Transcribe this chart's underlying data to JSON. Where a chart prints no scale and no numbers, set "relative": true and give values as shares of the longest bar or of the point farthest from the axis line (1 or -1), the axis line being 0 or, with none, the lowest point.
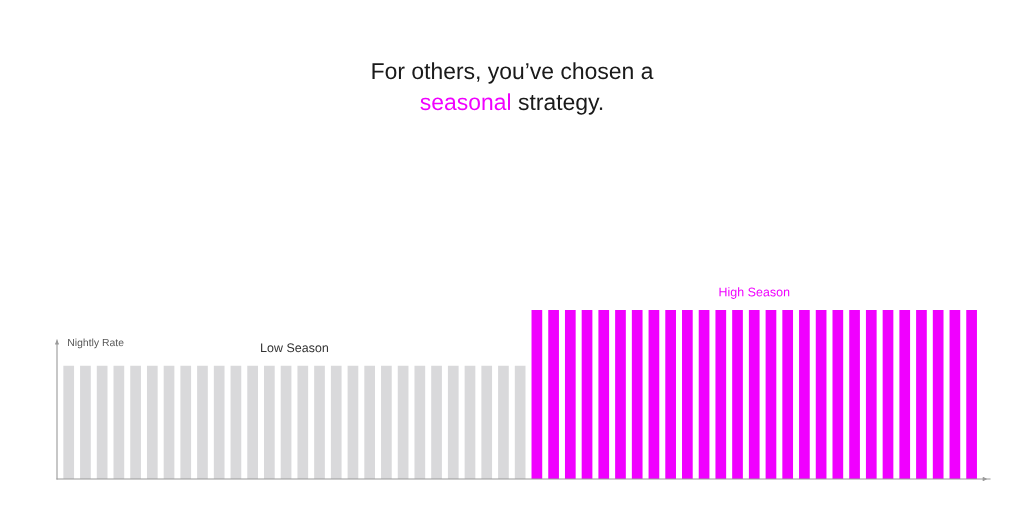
{
  "chart_data": {
    "type": "bar",
    "title": "For others, you’ve chosen a\nseasonal strategy.",
    "ylabel": "Nightly Rate",
    "relative": true,
    "stacked": true,
    "categories": [
      null,
      null,
      null,
      null,
      null,
      null,
      null,
      null,
      null,
      null,
      null,
      null,
      null,
      null,
      null,
      null,
      null,
      null,
      null,
      null,
      null,
      null,
      null,
      null,
      null,
      null,
      null,
      null,
      null,
      null,
      null,
      null,
      null,
      null,
      null,
      null,
      null,
      null,
      null,
      null,
      null,
      null,
      null,
      null,
      null,
      null,
      null,
      null,
      null,
      null,
      null,
      null,
      null,
      null,
      null
    ],
    "series": [
      {
        "name": "Low Season",
        "color": "#d9d9db",
        "values": [
          0.67,
          0.67,
          0.67,
          0.67,
          0.67,
          0.67,
          0.67,
          0.67,
          0.67,
          0.67,
          0.67,
          0.67,
          0.67,
          0.67,
          0.67,
          0.67,
          0.67,
          0.67,
          0.67,
          0.67,
          0.67,
          0.67,
          0.67,
          0.67,
          0.67,
          0.67,
          0.67,
          0.67,
          null,
          null,
          null,
          null,
          null,
          null,
          null,
          null,
          null,
          null,
          null,
          null,
          null,
          null,
          null,
          null,
          null,
          null,
          null,
          null,
          null,
          null,
          null,
          null,
          null,
          null,
          null
        ]
      },
      {
        "name": "High Season",
        "color": "#f000ff",
        "values": [
          null,
          null,
          null,
          null,
          null,
          null,
          null,
          null,
          null,
          null,
          null,
          null,
          null,
          null,
          null,
          null,
          null,
          null,
          null,
          null,
          null,
          null,
          null,
          null,
          null,
          null,
          null,
          null,
          1,
          1,
          1,
          1,
          1,
          1,
          1,
          1,
          1,
          1,
          1,
          1,
          1,
          1,
          1,
          1,
          1,
          1,
          1,
          1,
          1,
          1,
          1,
          1,
          1,
          1,
          1
        ]
      }
    ]
  }
}
